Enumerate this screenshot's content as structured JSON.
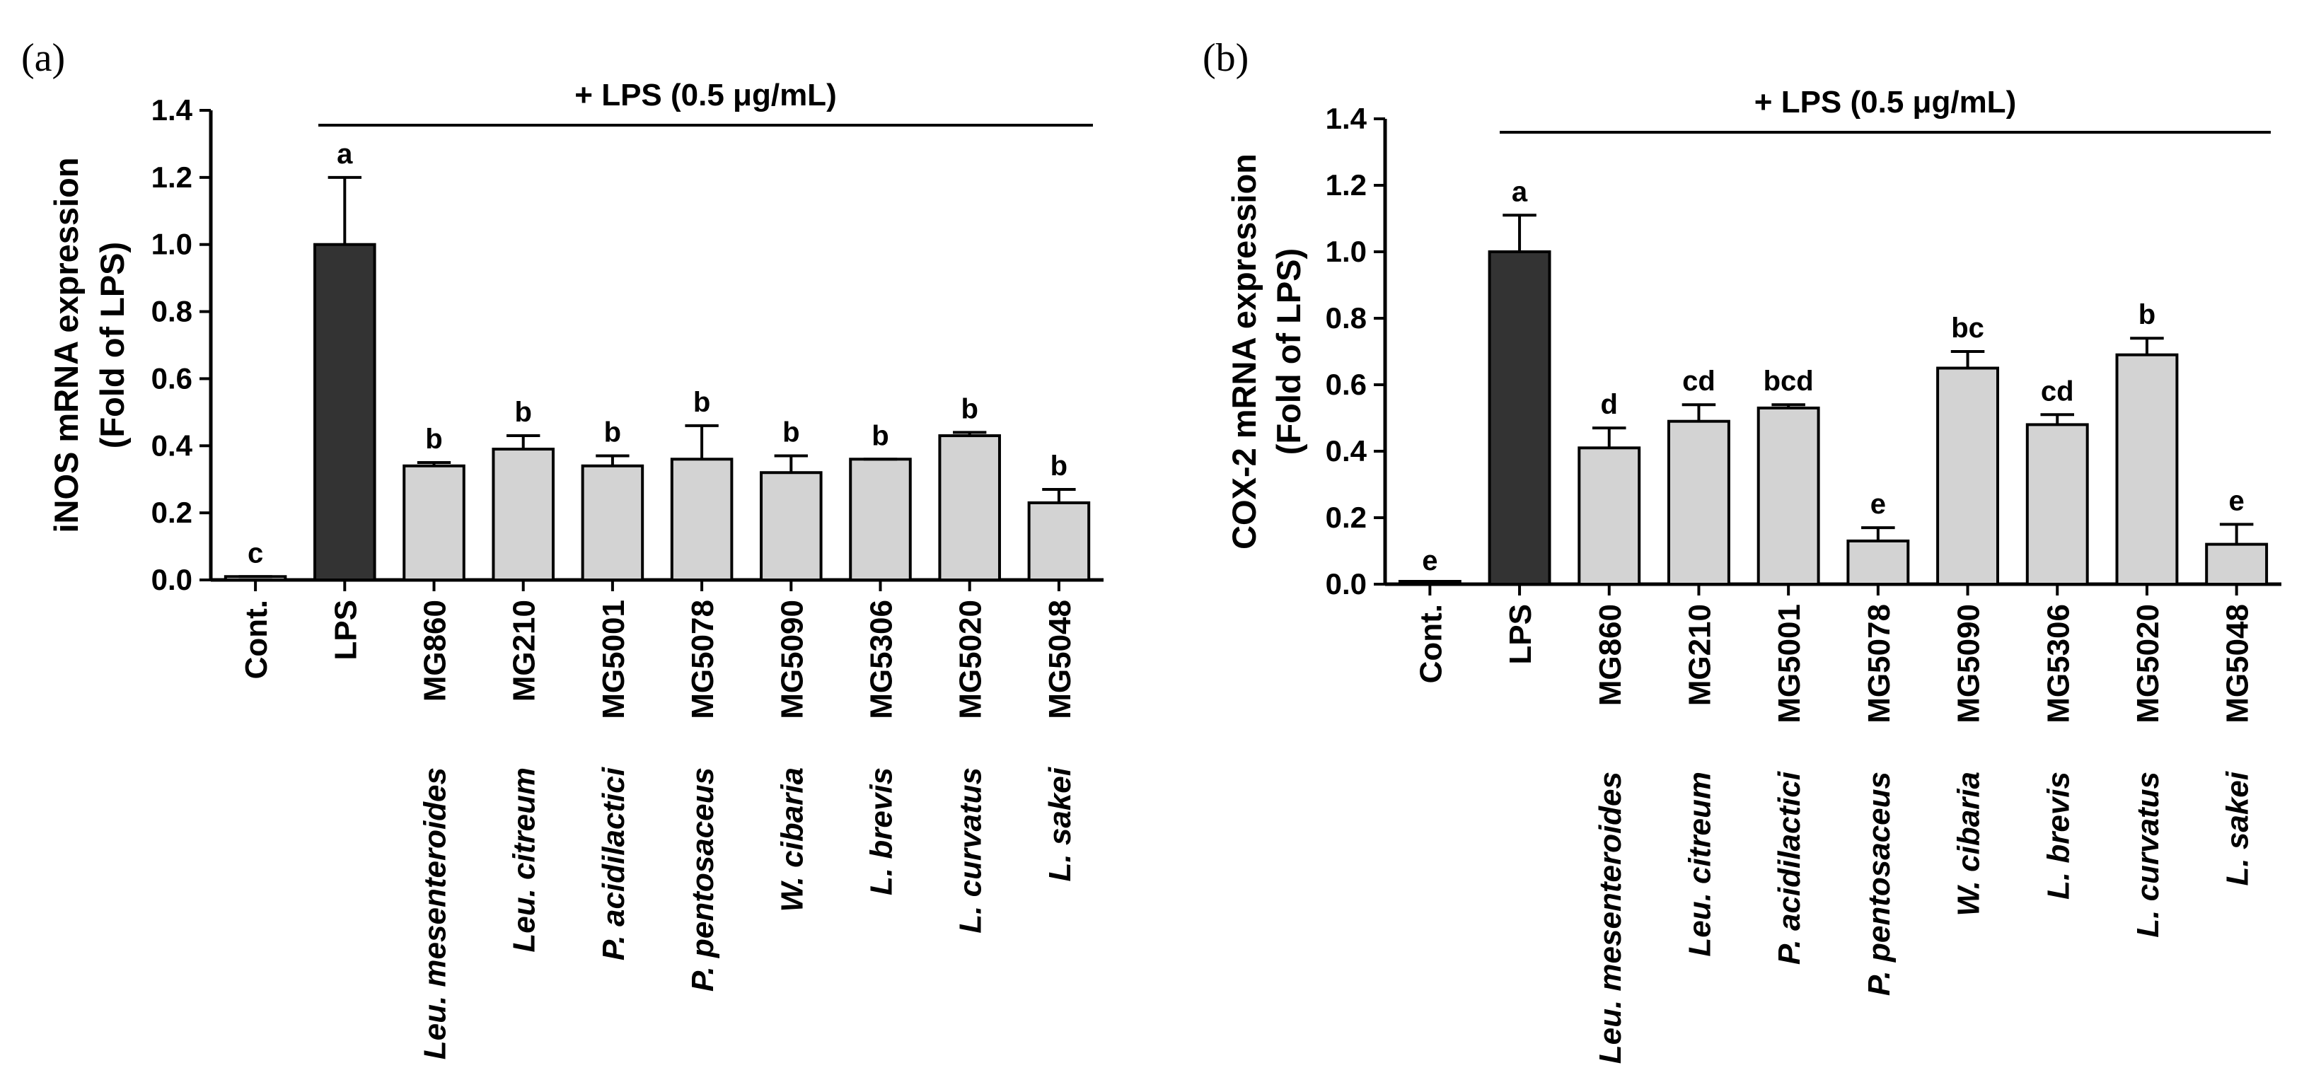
{
  "colors": {
    "lps_bar": "#333333",
    "strain_bar": "#d3d3d3",
    "control_bar": "#ffffff",
    "axis": "#000000"
  },
  "chart_data": [
    {
      "type": "bar",
      "panel_label": "(a)",
      "ylabel_line1": "iNOS mRNA expression",
      "ylabel_line2": "(Fold of LPS)",
      "treatment_label": "+ LPS (0.5 μg/mL)",
      "ylim": [
        0,
        1.4
      ],
      "yticks": [
        0.0,
        0.2,
        0.4,
        0.6,
        0.8,
        1.0,
        1.2,
        1.4
      ],
      "ytick_labels": [
        "0.0",
        "0.2",
        "0.4",
        "0.6",
        "0.8",
        "1.0",
        "1.2",
        "1.4"
      ],
      "categories": [
        {
          "strain": "Cont.",
          "species": ""
        },
        {
          "strain": "LPS",
          "species": ""
        },
        {
          "strain": "MG860",
          "species": "Leu. mesenteroides"
        },
        {
          "strain": "MG210",
          "species": "Leu. citreum"
        },
        {
          "strain": "MG5001",
          "species": "P. acidilactici"
        },
        {
          "strain": "MG5078",
          "species": "P. pentosaceus"
        },
        {
          "strain": "MG5090",
          "species": "W. cibaria"
        },
        {
          "strain": "MG5306",
          "species": "L. brevis"
        },
        {
          "strain": "MG5020",
          "species": "L. curvatus"
        },
        {
          "strain": "MG5048",
          "species": "L. sakei"
        }
      ],
      "values": [
        0.01,
        1.0,
        0.34,
        0.39,
        0.34,
        0.36,
        0.32,
        0.36,
        0.43,
        0.23
      ],
      "errors": [
        0.0,
        0.2,
        0.01,
        0.04,
        0.03,
        0.1,
        0.05,
        0.0,
        0.01,
        0.04
      ],
      "significance": [
        "c",
        "a",
        "b",
        "b",
        "b",
        "b",
        "b",
        "b",
        "b",
        "b"
      ]
    },
    {
      "type": "bar",
      "panel_label": "(b)",
      "ylabel_line1": "COX-2 mRNA expression",
      "ylabel_line2": "(Fold of LPS)",
      "treatment_label": "+ LPS (0.5 μg/mL)",
      "ylim": [
        0,
        1.4
      ],
      "yticks": [
        0.0,
        0.2,
        0.4,
        0.6,
        0.8,
        1.0,
        1.2,
        1.4
      ],
      "ytick_labels": [
        "0.0",
        "0.2",
        "0.4",
        "0.6",
        "0.8",
        "1.0",
        "1.2",
        "1.4"
      ],
      "categories": [
        {
          "strain": "Cont.",
          "species": ""
        },
        {
          "strain": "LPS",
          "species": ""
        },
        {
          "strain": "MG860",
          "species": "Leu. mesenteroides"
        },
        {
          "strain": "MG210",
          "species": "Leu. citreum"
        },
        {
          "strain": "MG5001",
          "species": "P. acidilactici"
        },
        {
          "strain": "MG5078",
          "species": "P. pentosaceus"
        },
        {
          "strain": "MG5090",
          "species": "W. cibaria"
        },
        {
          "strain": "MG5306",
          "species": "L. brevis"
        },
        {
          "strain": "MG5020",
          "species": "L. curvatus"
        },
        {
          "strain": "MG5048",
          "species": "L. sakei"
        }
      ],
      "values": [
        0.0,
        1.0,
        0.41,
        0.49,
        0.53,
        0.13,
        0.65,
        0.48,
        0.69,
        0.12
      ],
      "errors": [
        0.0,
        0.11,
        0.06,
        0.05,
        0.01,
        0.04,
        0.05,
        0.03,
        0.05,
        0.06
      ],
      "significance": [
        "e",
        "a",
        "d",
        "cd",
        "bcd",
        "e",
        "bc",
        "cd",
        "b",
        "e"
      ]
    }
  ]
}
